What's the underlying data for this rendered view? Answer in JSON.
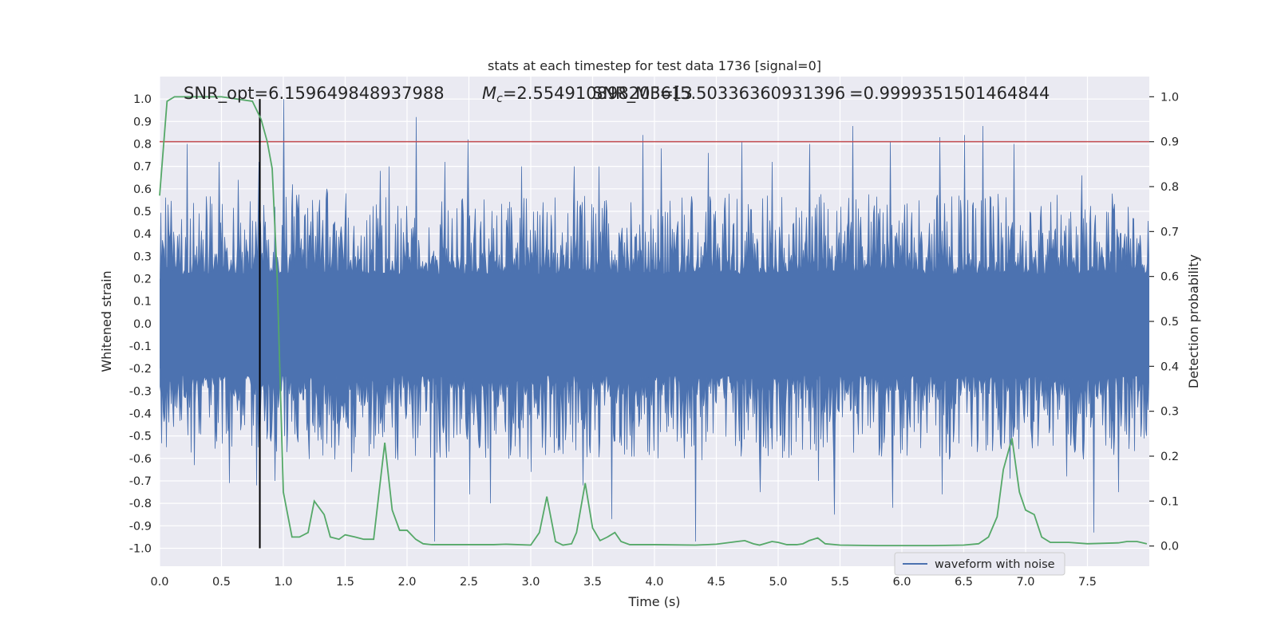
{
  "chart_data": {
    "type": "line",
    "title": "stats at each timestep for test data 1736 [signal=0]",
    "xlabel": "Time (s)",
    "ylabel": "Whitened strain",
    "y2label": "Detection probability",
    "xlim": [
      0.0,
      8.0
    ],
    "ylim": [
      -1.08,
      1.1
    ],
    "y2lim": [
      -0.045,
      1.045
    ],
    "x_ticks": [
      "0.0",
      "0.5",
      "1.0",
      "1.5",
      "2.0",
      "2.5",
      "3.0",
      "3.5",
      "4.0",
      "4.5",
      "5.0",
      "5.5",
      "6.0",
      "6.5",
      "7.0",
      "7.5"
    ],
    "y_ticks": [
      "1.0",
      "0.9",
      "0.8",
      "0.7",
      "0.6",
      "0.5",
      "0.4",
      "0.3",
      "0.2",
      "0.1",
      "0.0",
      "-0.1",
      "-0.2",
      "-0.3",
      "-0.4",
      "-0.5",
      "-0.6",
      "-0.7",
      "-0.8",
      "-0.9",
      "-1.0"
    ],
    "y2_ticks": [
      "1.0",
      "0.9",
      "0.8",
      "0.7",
      "0.6",
      "0.5",
      "0.4",
      "0.3",
      "0.2",
      "0.1",
      "0.0"
    ],
    "grid": true,
    "legend": {
      "position": "lower-right",
      "entries": [
        "waveform with noise"
      ]
    },
    "annotations": {
      "snr_opt": "SNR_opt=6.159649848937988",
      "chirp_mass": "=2.554910898203613",
      "chirp_mass_symbol": "M",
      "chirp_mass_subscript": "c",
      "snr_mf": "SNR_MF=[5.50336360931396",
      "detection_prob": "=0.9999351501464844"
    },
    "threshold_line": {
      "y2": 0.9,
      "color": "#c44e52"
    },
    "vertical_marker": {
      "x": 0.81,
      "color": "#000000"
    },
    "series": [
      {
        "name": "waveform with noise",
        "axis": "left",
        "color": "#4c72b0",
        "kind": "noise",
        "envelope": {
          "positive_typical": 0.4,
          "negative_typical": -0.42
        },
        "peaks": [
          [
            0.22,
            0.8
          ],
          [
            0.48,
            0.72
          ],
          [
            0.63,
            0.64
          ],
          [
            0.8,
            0.72
          ],
          [
            1.0,
            1.0
          ],
          [
            1.07,
            0.62
          ],
          [
            1.35,
            0.6
          ],
          [
            1.5,
            0.58
          ],
          [
            1.78,
            0.68
          ],
          [
            1.85,
            0.7
          ],
          [
            2.07,
            0.92
          ],
          [
            2.3,
            0.72
          ],
          [
            2.49,
            0.82
          ],
          [
            2.92,
            0.7
          ],
          [
            3.35,
            0.7
          ],
          [
            3.55,
            0.7
          ],
          [
            3.9,
            0.84
          ],
          [
            4.05,
            0.78
          ],
          [
            4.43,
            0.76
          ],
          [
            4.7,
            0.81
          ],
          [
            4.95,
            0.72
          ],
          [
            5.25,
            0.8
          ],
          [
            5.6,
            0.88
          ],
          [
            5.9,
            0.81
          ],
          [
            6.3,
            0.83
          ],
          [
            6.5,
            0.84
          ],
          [
            6.65,
            0.88
          ],
          [
            6.9,
            0.8
          ],
          [
            7.45,
            0.66
          ]
        ],
        "troughs": [
          [
            0.05,
            -0.55
          ],
          [
            0.28,
            -0.63
          ],
          [
            0.56,
            -0.71
          ],
          [
            0.78,
            -0.72
          ],
          [
            0.93,
            -0.7
          ],
          [
            1.55,
            -0.66
          ],
          [
            1.9,
            -0.6
          ],
          [
            2.22,
            -0.97
          ],
          [
            2.5,
            -0.76
          ],
          [
            2.67,
            -0.8
          ],
          [
            3.0,
            -0.66
          ],
          [
            3.42,
            -0.72
          ],
          [
            3.65,
            -0.87
          ],
          [
            4.33,
            -0.97
          ],
          [
            4.85,
            -0.75
          ],
          [
            5.32,
            -0.7
          ],
          [
            5.45,
            -0.85
          ],
          [
            5.92,
            -0.82
          ],
          [
            6.32,
            -0.76
          ],
          [
            6.87,
            -0.69
          ],
          [
            7.33,
            -0.68
          ],
          [
            7.55,
            -0.93
          ],
          [
            7.75,
            -0.75
          ]
        ]
      },
      {
        "name": "",
        "axis": "right",
        "color": "#55a868",
        "x": [
          0.0,
          0.06,
          0.12,
          0.5,
          0.75,
          0.82,
          0.87,
          0.91,
          0.95,
          1.0,
          1.07,
          1.13,
          1.2,
          1.25,
          1.33,
          1.38,
          1.45,
          1.5,
          1.58,
          1.65,
          1.73,
          1.82,
          1.88,
          1.94,
          2.0,
          2.07,
          2.13,
          2.2,
          2.4,
          2.7,
          2.8,
          3.0,
          3.07,
          3.13,
          3.2,
          3.26,
          3.33,
          3.37,
          3.44,
          3.5,
          3.56,
          3.62,
          3.68,
          3.73,
          3.8,
          4.0,
          4.33,
          4.5,
          4.67,
          4.73,
          4.8,
          4.85,
          4.95,
          5.0,
          5.07,
          5.15,
          5.2,
          5.25,
          5.32,
          5.38,
          5.5,
          5.8,
          6.0,
          6.25,
          6.5,
          6.62,
          6.7,
          6.77,
          6.82,
          6.89,
          6.95,
          7.0,
          7.07,
          7.13,
          7.2,
          7.35,
          7.5,
          7.75,
          7.82,
          7.9,
          7.98
        ],
        "y": [
          0.78,
          0.99,
          1.0,
          1.0,
          0.99,
          0.95,
          0.9,
          0.84,
          0.6,
          0.12,
          0.02,
          0.02,
          0.03,
          0.1,
          0.07,
          0.02,
          0.015,
          0.025,
          0.02,
          0.015,
          0.015,
          0.23,
          0.08,
          0.035,
          0.035,
          0.015,
          0.005,
          0.003,
          0.003,
          0.003,
          0.004,
          0.002,
          0.03,
          0.11,
          0.01,
          0.002,
          0.005,
          0.03,
          0.14,
          0.04,
          0.012,
          0.02,
          0.03,
          0.01,
          0.003,
          0.003,
          0.002,
          0.004,
          0.01,
          0.012,
          0.005,
          0.002,
          0.01,
          0.008,
          0.003,
          0.003,
          0.005,
          0.012,
          0.018,
          0.005,
          0.002,
          0.001,
          0.001,
          0.001,
          0.002,
          0.005,
          0.02,
          0.065,
          0.17,
          0.24,
          0.12,
          0.08,
          0.07,
          0.02,
          0.008,
          0.008,
          0.005,
          0.007,
          0.01,
          0.01,
          0.005
        ]
      }
    ]
  }
}
